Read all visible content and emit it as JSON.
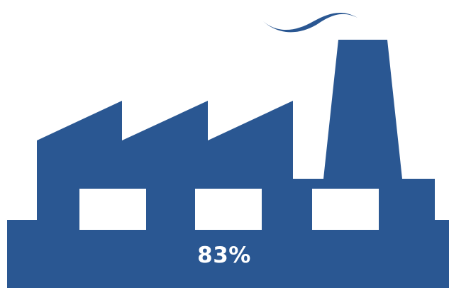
{
  "graphic": {
    "icon": "factory-icon",
    "value_label": "83%",
    "fill_color": "#2a5792",
    "window_color": "#ffffff"
  }
}
